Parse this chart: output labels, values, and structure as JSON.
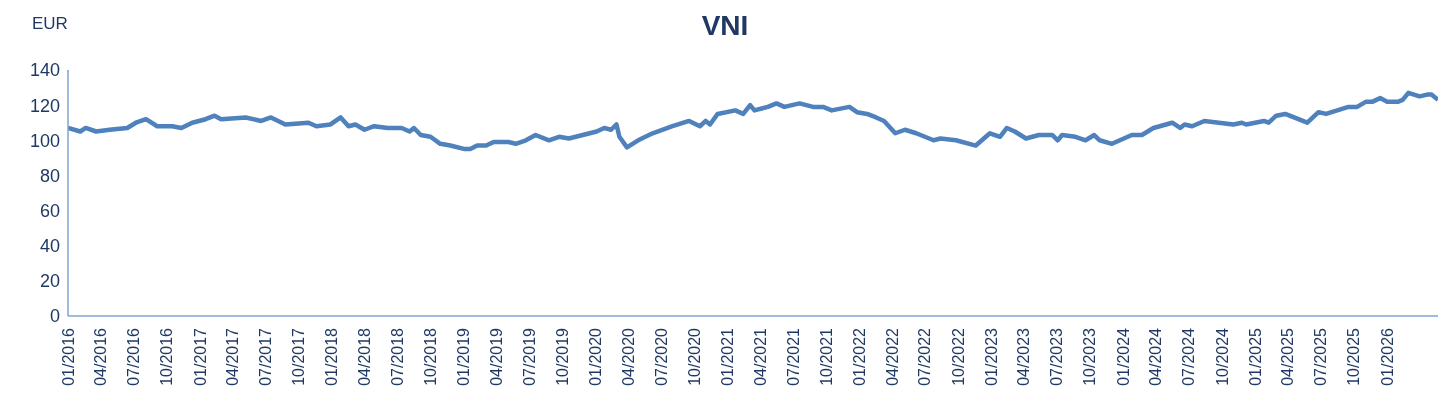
{
  "chart_data": {
    "type": "line",
    "title": "VNI",
    "ylabel": "EUR",
    "x": [
      "2016-01-01",
      "2016-02-04",
      "2016-02-19",
      "2016-03-19",
      "2016-04-25",
      "2016-06-13",
      "2016-07-07",
      "2016-08-04",
      "2016-09-04",
      "2016-10-16",
      "2016-11-10",
      "2016-12-10",
      "2017-01-16",
      "2017-02-10",
      "2017-02-28",
      "2017-05-07",
      "2017-06-19",
      "2017-07-16",
      "2017-08-25",
      "2017-10-28",
      "2017-11-19",
      "2017-12-28",
      "2018-01-25",
      "2018-02-16",
      "2018-03-07",
      "2018-04-01",
      "2018-04-28",
      "2018-06-04",
      "2018-07-13",
      "2018-08-04",
      "2018-08-16",
      "2018-09-04",
      "2018-10-01",
      "2018-10-28",
      "2018-11-25",
      "2019-01-04",
      "2019-01-19",
      "2019-02-07",
      "2019-03-04",
      "2019-03-25",
      "2019-05-04",
      "2019-05-25",
      "2019-06-22",
      "2019-07-19",
      "2019-08-25",
      "2019-09-22",
      "2019-10-19",
      "2020-01-04",
      "2020-01-25",
      "2020-02-13",
      "2020-02-28",
      "2020-03-07",
      "2020-03-28",
      "2020-04-28",
      "2020-06-07",
      "2020-08-01",
      "2020-09-16",
      "2020-10-16",
      "2020-11-01",
      "2020-11-13",
      "2020-12-04",
      "2021-01-22",
      "2021-02-13",
      "2021-03-04",
      "2021-03-16",
      "2021-04-22",
      "2021-05-16",
      "2021-06-07",
      "2021-07-19",
      "2021-08-25",
      "2021-09-22",
      "2021-10-16",
      "2021-12-04",
      "2021-12-25",
      "2022-01-22",
      "2022-02-16",
      "2022-03-10",
      "2022-04-10",
      "2022-05-07",
      "2022-06-07",
      "2022-07-25",
      "2022-08-13",
      "2022-09-25",
      "2022-11-19",
      "2022-12-28",
      "2023-01-25",
      "2023-02-13",
      "2023-03-07",
      "2023-04-07",
      "2023-05-13",
      "2023-06-19",
      "2023-07-04",
      "2023-07-16",
      "2023-08-22",
      "2023-09-19",
      "2023-10-13",
      "2023-10-28",
      "2023-12-01",
      "2024-01-25",
      "2024-02-22",
      "2024-03-25",
      "2024-05-16",
      "2024-06-07",
      "2024-06-19",
      "2024-07-10",
      "2024-08-13",
      "2024-09-22",
      "2024-11-01",
      "2024-11-25",
      "2024-12-07",
      "2025-01-25",
      "2025-02-07",
      "2025-02-28",
      "2025-03-25",
      "2025-05-25",
      "2025-06-25",
      "2025-07-16",
      "2025-09-16",
      "2025-10-10",
      "2025-11-04",
      "2025-11-22",
      "2025-12-13",
      "2026-01-01",
      "2026-02-01",
      "2026-02-13",
      "2026-03-01",
      "2026-04-01",
      "2026-04-22",
      "2026-05-04",
      "2026-05-22"
    ],
    "series": [
      {
        "color": "#4f81bd",
        "values": [
          107,
          105,
          107,
          105,
          106,
          107,
          110,
          112,
          108,
          108,
          107,
          110,
          112,
          114,
          112,
          113,
          111,
          113,
          109,
          110,
          108,
          109,
          113,
          108,
          109,
          106,
          108,
          107,
          107,
          105,
          107,
          103,
          102,
          98,
          97,
          95,
          95,
          97,
          97,
          99,
          99,
          98,
          100,
          103,
          100,
          102,
          101,
          105,
          107,
          106,
          109,
          102,
          96,
          100,
          104,
          108,
          111,
          108,
          111,
          109,
          115,
          117,
          115,
          120,
          117,
          119,
          121,
          119,
          121,
          119,
          119,
          117,
          119,
          116,
          115,
          113,
          111,
          104,
          106,
          104,
          100,
          101,
          100,
          97,
          104,
          102,
          107,
          105,
          101,
          103,
          103,
          100,
          103,
          102,
          100,
          103,
          100,
          98,
          103,
          103,
          107,
          110,
          107,
          109,
          108,
          111,
          110,
          109,
          110,
          109,
          111,
          110,
          114,
          115,
          110,
          116,
          115,
          119,
          119,
          122,
          122,
          124,
          122,
          122,
          123,
          127,
          125,
          126,
          126,
          123
        ]
      }
    ],
    "xlim": [
      "2016-01-01",
      "2026-05-22"
    ],
    "xticks": [
      {
        "value": "2016-01-01",
        "label": "01/2016"
      },
      {
        "value": "2016-04-01",
        "label": "04/2016"
      },
      {
        "value": "2016-07-01",
        "label": "07/2016"
      },
      {
        "value": "2016-10-01",
        "label": "10/2016"
      },
      {
        "value": "2017-01-01",
        "label": "01/2017"
      },
      {
        "value": "2017-04-01",
        "label": "04/2017"
      },
      {
        "value": "2017-07-01",
        "label": "07/2017"
      },
      {
        "value": "2017-10-01",
        "label": "10/2017"
      },
      {
        "value": "2018-01-01",
        "label": "01/2018"
      },
      {
        "value": "2018-04-01",
        "label": "04/2018"
      },
      {
        "value": "2018-07-01",
        "label": "07/2018"
      },
      {
        "value": "2018-10-01",
        "label": "10/2018"
      },
      {
        "value": "2019-01-01",
        "label": "01/2019"
      },
      {
        "value": "2019-04-01",
        "label": "04/2019"
      },
      {
        "value": "2019-07-01",
        "label": "07/2019"
      },
      {
        "value": "2019-10-01",
        "label": "10/2019"
      },
      {
        "value": "2020-01-01",
        "label": "01/2020"
      },
      {
        "value": "2020-04-01",
        "label": "04/2020"
      },
      {
        "value": "2020-07-01",
        "label": "07/2020"
      },
      {
        "value": "2020-10-01",
        "label": "10/2020"
      },
      {
        "value": "2021-01-01",
        "label": "01/2021"
      },
      {
        "value": "2021-04-01",
        "label": "04/2021"
      },
      {
        "value": "2021-07-01",
        "label": "07/2021"
      },
      {
        "value": "2021-10-01",
        "label": "10/2021"
      },
      {
        "value": "2022-01-01",
        "label": "01/2022"
      },
      {
        "value": "2022-04-01",
        "label": "04/2022"
      },
      {
        "value": "2022-07-01",
        "label": "07/2022"
      },
      {
        "value": "2022-10-01",
        "label": "10/2022"
      },
      {
        "value": "2023-01-01",
        "label": "01/2023"
      },
      {
        "value": "2023-04-01",
        "label": "04/2023"
      },
      {
        "value": "2023-07-01",
        "label": "07/2023"
      },
      {
        "value": "2023-10-01",
        "label": "10/2023"
      },
      {
        "value": "2024-01-01",
        "label": "01/2024"
      },
      {
        "value": "2024-04-01",
        "label": "04/2024"
      },
      {
        "value": "2024-07-01",
        "label": "07/2024"
      },
      {
        "value": "2024-10-01",
        "label": "10/2024"
      },
      {
        "value": "2025-01-01",
        "label": "01/2025"
      },
      {
        "value": "2025-04-01",
        "label": "04/2025"
      },
      {
        "value": "2025-07-01",
        "label": "07/2025"
      },
      {
        "value": "2025-10-01",
        "label": "10/2025"
      },
      {
        "value": "2026-01-01",
        "label": "01/2026"
      }
    ],
    "ylim": [
      0,
      140
    ],
    "yticks": [
      0,
      20,
      40,
      60,
      80,
      100,
      120,
      140
    ],
    "grid": false,
    "legend": false,
    "marker": "none",
    "line_style": "solid"
  }
}
